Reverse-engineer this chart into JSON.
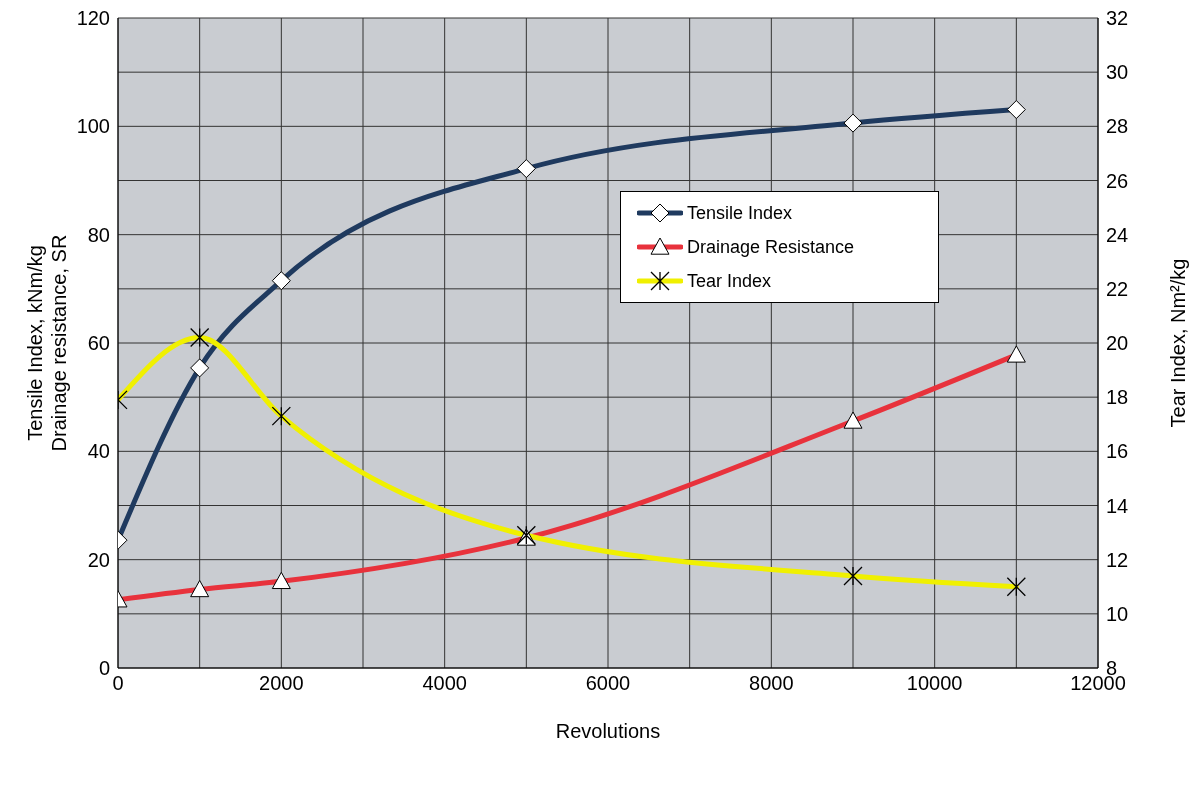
{
  "chart_data": {
    "type": "line",
    "xlabel": "Revolutions",
    "ylabel": "Tensile Index, kNm/kg\nDrainage resistance, SR",
    "y2label": "Tear Index, Nm²/kg",
    "x": [
      0,
      1000,
      2000,
      5000,
      9000,
      11000
    ],
    "xlim": [
      0,
      12000
    ],
    "xticks": [
      0,
      {
        "value": 1000,
        "label": null
      },
      2000,
      {
        "value": 3000,
        "label": null
      },
      4000,
      {
        "value": 5000,
        "label": null
      },
      6000,
      {
        "value": 7000,
        "label": null
      },
      8000,
      {
        "value": 9000,
        "label": null
      },
      10000,
      {
        "value": 11000,
        "label": null
      },
      12000
    ],
    "ylim": [
      0,
      120
    ],
    "yticks": [
      0,
      {
        "value": 10,
        "label": null
      },
      20,
      {
        "value": 30,
        "label": null
      },
      40,
      {
        "value": 50,
        "label": null
      },
      60,
      {
        "value": 70,
        "label": null
      },
      80,
      {
        "value": 90,
        "label": null
      },
      100,
      {
        "value": 110,
        "label": null
      },
      120
    ],
    "y2lim": [
      8,
      32
    ],
    "y2ticks": [
      8,
      10,
      12,
      14,
      16,
      18,
      20,
      22,
      24,
      26,
      28,
      30,
      32
    ],
    "grid": true,
    "legend": "top right",
    "line_style": "solid",
    "series": [
      {
        "name": "Tensile Index",
        "color": "#1f3a5f",
        "marker": "diamond",
        "values": [
          23.6,
          55.4,
          71.5,
          92.2,
          100.6,
          103.1
        ]
      },
      {
        "name": "Drainage Resistance",
        "color": "#e8323c",
        "marker": "triangle",
        "values": [
          12.6,
          14.5,
          16,
          24,
          45.6,
          57.8
        ]
      },
      {
        "name": "Tear Index",
        "color": "#f0f000",
        "marker": "cross",
        "axis": "y2",
        "values": [
          17.9,
          20.2,
          17.3,
          12.9,
          11.4,
          11.0
        ]
      }
    ]
  }
}
